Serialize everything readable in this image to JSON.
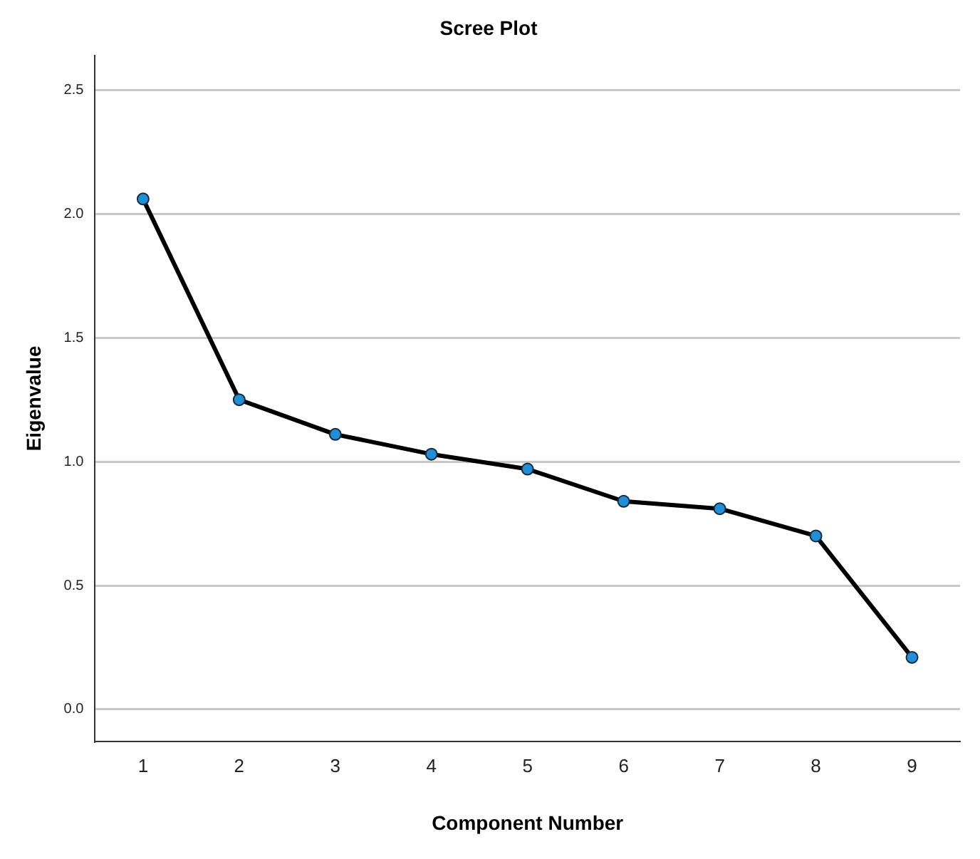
{
  "chart_data": {
    "type": "line",
    "title": "Scree Plot",
    "xlabel": "Component Number",
    "ylabel": "Eigenvalue",
    "categories": [
      "1",
      "2",
      "3",
      "4",
      "5",
      "6",
      "7",
      "8",
      "9"
    ],
    "series": [
      {
        "color": "#000000",
        "values": [
          2.06,
          1.25,
          1.11,
          1.03,
          0.97,
          0.84,
          0.81,
          0.7,
          0.21
        ]
      }
    ],
    "ylim": [
      -0.13,
      2.64
    ],
    "yticks": [
      {
        "value": 0,
        "label": "0.0"
      },
      {
        "value": 0.5,
        "label": "0.5"
      },
      {
        "value": 1,
        "label": "1.0"
      },
      {
        "value": 1.5,
        "label": "1.5"
      },
      {
        "value": 2,
        "label": "2.0"
      },
      {
        "value": 2.5,
        "label": "2.5"
      }
    ],
    "grid": "y",
    "legend": false,
    "marker": "circle",
    "line_style": "solid"
  }
}
